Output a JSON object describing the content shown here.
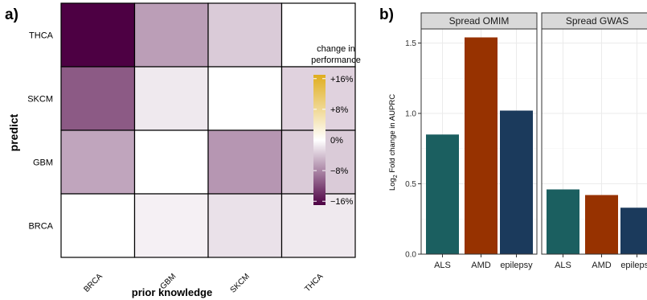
{
  "panel_labels": {
    "a": "a)",
    "b": "b)"
  },
  "chart_data": [
    {
      "type": "heatmap",
      "xlabel": "prior knowledge",
      "ylabel": "predict",
      "x_categories": [
        "BRCA",
        "GBM",
        "SKCM",
        "THCA"
      ],
      "y_categories": [
        "THCA",
        "SKCM",
        "GBM",
        "BRCA"
      ],
      "values_percent": [
        [
          -17,
          -6.5,
          -3.5,
          0
        ],
        [
          -11,
          -1.5,
          0,
          -3
        ],
        [
          -6,
          0,
          -7,
          -3.5
        ],
        [
          0,
          -1,
          -2,
          -1.5
        ]
      ],
      "legend": {
        "title_lines": [
          "change in",
          "performance"
        ],
        "ticks": [
          "+16%",
          "+8%",
          "0%",
          "−8%",
          "−16%"
        ],
        "tick_values": [
          16,
          8,
          0,
          -8,
          -16
        ],
        "range": [
          -17,
          17
        ],
        "colors": {
          "low": "#4d0043",
          "mid": "#ffffff",
          "high": "#dfad1e"
        }
      }
    },
    {
      "type": "bar",
      "ylabel_main": "Log",
      "ylabel_sub": "2",
      "ylabel_rest": " Fold change in AUPRC",
      "ylim": [
        0,
        1.6
      ],
      "yticks": [
        "0.0",
        "0.5",
        "1.0",
        "1.5"
      ],
      "ytick_values": [
        0,
        0.5,
        1.0,
        1.5
      ],
      "facets": [
        {
          "title": "Spread OMIM",
          "categories": [
            "ALS",
            "AMD",
            "epilepsy"
          ],
          "values": [
            0.85,
            1.54,
            1.02
          ]
        },
        {
          "title": "Spread GWAS",
          "categories": [
            "ALS",
            "AMD",
            "epilepsy"
          ],
          "values": [
            0.46,
            0.42,
            0.33
          ]
        }
      ],
      "colors": {
        "ALS": "#1b5f60",
        "AMD": "#973200",
        "epilepsy": "#1b3a5c"
      }
    }
  ]
}
